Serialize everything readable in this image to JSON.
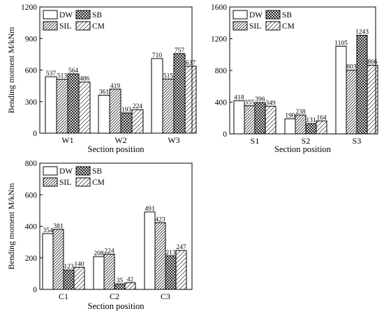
{
  "chart_data": [
    {
      "type": "bar",
      "categories": [
        "W1",
        "W2",
        "W3"
      ],
      "xlabel": "Section position",
      "ylabel": "Bending moment M/kNm",
      "ylim": [
        0,
        1200
      ],
      "yticks": [
        0,
        300,
        600,
        900,
        1200
      ],
      "legend_position": "top-left",
      "series": [
        {
          "name": "DW",
          "pattern": "white",
          "values": [
            537,
            361,
            710
          ]
        },
        {
          "name": "SIL",
          "pattern": "hatch",
          "values": [
            513,
            419,
            515
          ]
        },
        {
          "name": "SB",
          "pattern": "cross",
          "values": [
            564,
            193,
            757
          ]
        },
        {
          "name": "CM",
          "pattern": "diag",
          "values": [
            486,
            224,
            637
          ]
        }
      ]
    },
    {
      "type": "bar",
      "categories": [
        "S1",
        "S2",
        "S3"
      ],
      "xlabel": "Section position",
      "ylabel": "",
      "ylim": [
        0,
        1600
      ],
      "yticks": [
        0,
        400,
        800,
        1200,
        1600
      ],
      "legend_position": "top-left",
      "series": [
        {
          "name": "DW",
          "pattern": "white",
          "values": [
            418,
            190,
            1105
          ]
        },
        {
          "name": "SIL",
          "pattern": "hatch",
          "values": [
            355,
            238,
            803
          ]
        },
        {
          "name": "SB",
          "pattern": "cross",
          "values": [
            396,
            131,
            1243
          ]
        },
        {
          "name": "CM",
          "pattern": "diag",
          "values": [
            349,
            164,
            866
          ]
        }
      ]
    },
    {
      "type": "bar",
      "categories": [
        "C1",
        "C2",
        "C3"
      ],
      "xlabel": "Section position",
      "ylabel": "Bending moment M/kNm",
      "ylim": [
        0,
        800
      ],
      "yticks": [
        0,
        200,
        400,
        600,
        800
      ],
      "legend_position": "top-left",
      "series": [
        {
          "name": "DW",
          "pattern": "white",
          "values": [
            354,
            208,
            491
          ]
        },
        {
          "name": "SIL",
          "pattern": "hatch",
          "values": [
            381,
            224,
            423
          ]
        },
        {
          "name": "SB",
          "pattern": "cross",
          "values": [
            123,
            35,
            213
          ]
        },
        {
          "name": "CM",
          "pattern": "diag",
          "values": [
            140,
            42,
            247
          ]
        }
      ]
    }
  ]
}
